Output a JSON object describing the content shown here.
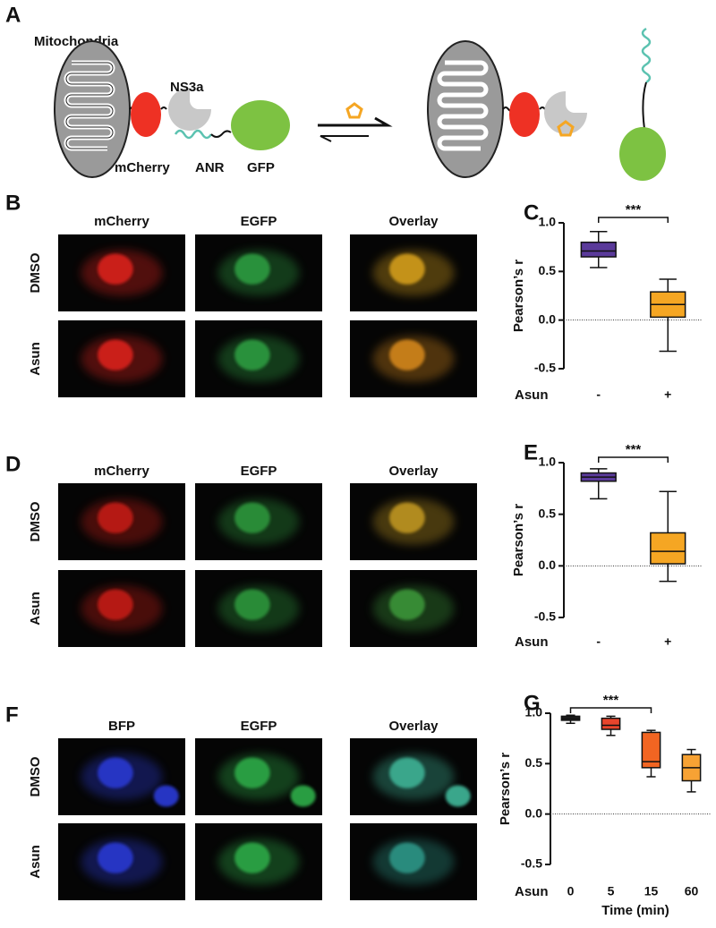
{
  "diagram": {
    "letter": "A",
    "mitochondria": "Mitochondria",
    "ns3a": "NS3a",
    "mcherry": "mCherry",
    "anr": "ANR",
    "gfp": "GFP"
  },
  "images": [
    {
      "letter": "B",
      "columns": [
        "mCherry",
        "EGFP",
        "Overlay"
      ],
      "rows": [
        "DMSO",
        "Asun"
      ]
    },
    {
      "letter": "D",
      "columns": [
        "mCherry",
        "EGFP",
        "Overlay"
      ],
      "rows": [
        "DMSO",
        "Asun"
      ]
    },
    {
      "letter": "F",
      "columns": [
        "BFP",
        "EGFP",
        "Overlay"
      ],
      "rows": [
        "DMSO",
        "Asun"
      ]
    }
  ],
  "chart_data": [
    {
      "type": "box",
      "letter": "C",
      "ylabel": "Pearson’s r",
      "row_label": "Asun",
      "categories": [
        "-",
        "+"
      ],
      "annotation": "***",
      "boxes": [
        {
          "low": 0.54,
          "q1": 0.65,
          "median": 0.71,
          "q3": 0.8,
          "high": 0.91,
          "color": "#5a3a9a"
        },
        {
          "low": -0.32,
          "q1": 0.03,
          "median": 0.16,
          "q3": 0.29,
          "high": 0.42,
          "color": "#f5a623"
        }
      ],
      "ylim": [
        -0.5,
        1
      ],
      "yticks": [
        {
          "value": 1,
          "label": "1.0"
        },
        0.5,
        {
          "value": 0,
          "label": "0.0"
        },
        -0.5
      ]
    },
    {
      "type": "box",
      "letter": "E",
      "ylabel": "Pearson’s r",
      "row_label": "Asun",
      "categories": [
        "-",
        "+"
      ],
      "annotation": "***",
      "boxes": [
        {
          "low": 0.65,
          "q1": 0.82,
          "median": 0.86,
          "q3": 0.9,
          "high": 0.94,
          "color": "#5a3a9a"
        },
        {
          "low": -0.15,
          "q1": 0.02,
          "median": 0.14,
          "q3": 0.32,
          "high": 0.72,
          "color": "#f5a623"
        }
      ],
      "ylim": [
        -0.5,
        1
      ],
      "yticks": [
        {
          "value": 1,
          "label": "1.0"
        },
        0.5,
        {
          "value": 0,
          "label": "0.0"
        },
        -0.5
      ]
    },
    {
      "type": "box",
      "letter": "G",
      "ylabel": "Pearson’s r",
      "row_label": "Asun",
      "xlabel": "Time (min)",
      "categories": [
        "0",
        "5",
        "15",
        "60"
      ],
      "annotation": "***",
      "boxes": [
        {
          "low": 0.9,
          "q1": 0.93,
          "median": 0.95,
          "q3": 0.97,
          "high": 0.98,
          "color": "#222222"
        },
        {
          "low": 0.78,
          "q1": 0.84,
          "median": 0.88,
          "q3": 0.95,
          "high": 0.97,
          "color": "#e8452c"
        },
        {
          "low": 0.37,
          "q1": 0.46,
          "median": 0.52,
          "q3": 0.81,
          "high": 0.83,
          "color": "#f26522"
        },
        {
          "low": 0.22,
          "q1": 0.33,
          "median": 0.46,
          "q3": 0.59,
          "high": 0.64,
          "color": "#f7a234"
        }
      ],
      "ylim": [
        -0.5,
        1
      ],
      "yticks": [
        {
          "value": 1,
          "label": "1.0"
        },
        0.5,
        {
          "value": 0,
          "label": "0.0"
        },
        -0.5
      ]
    }
  ]
}
